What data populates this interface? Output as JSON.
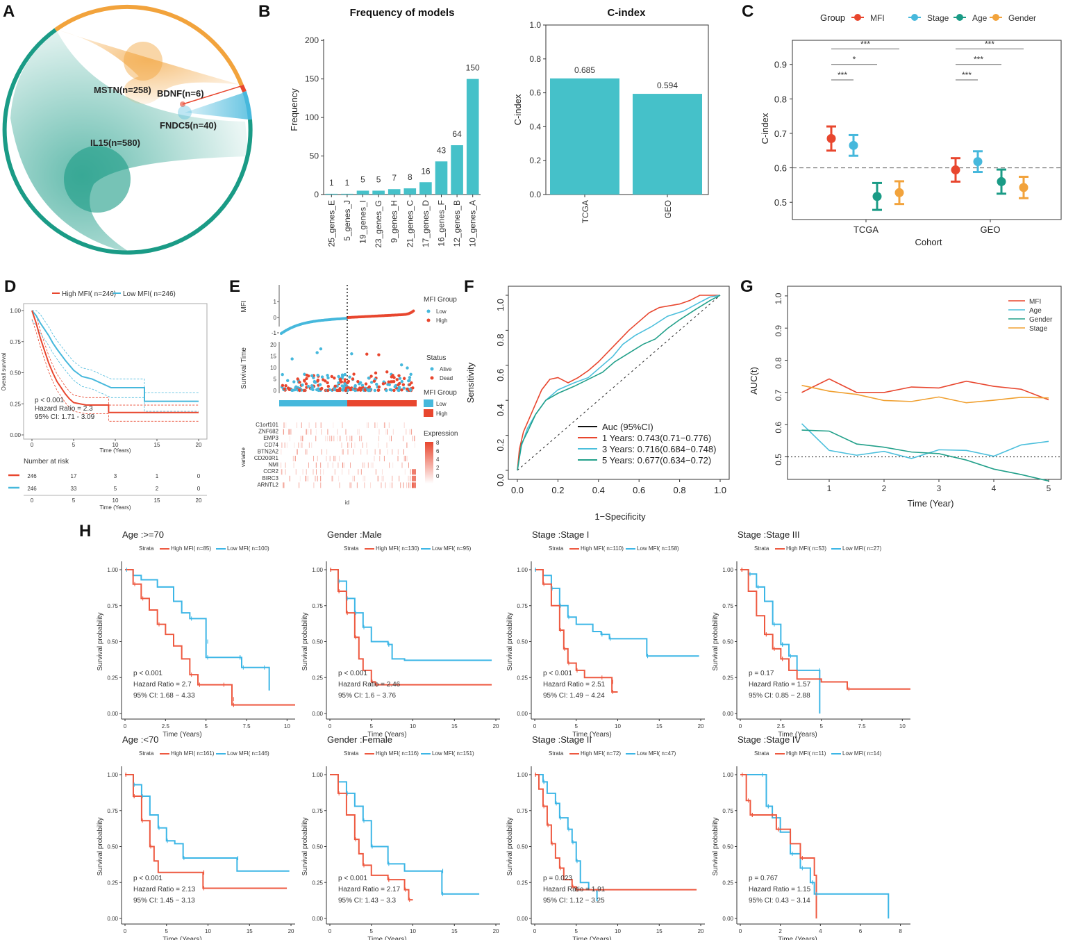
{
  "colors": {
    "teal": "#45c1c9",
    "red": "#e8462e",
    "cyan": "#46b8dc",
    "green": "#1a9b86",
    "orange": "#f2a33c",
    "lred": "#ee5940",
    "lblue": "#3cb6e6",
    "auc_red": "#e8462e",
    "auc_cyan": "#4bbfdc",
    "auc_green": "#22a08a",
    "auc_orange": "#f0a030"
  },
  "panel_letters": [
    "A",
    "B",
    "C",
    "D",
    "E",
    "F",
    "G",
    "H"
  ],
  "chart_data": [
    {
      "id": "A",
      "type": "chord",
      "labels": [
        "MSTN(n=258)",
        "BDNF(n=6)",
        "FNDC5(n=40)",
        "IL15(n=580)"
      ],
      "groups": [
        "MSTN",
        "BDNF",
        "FNDC5",
        "IL15"
      ],
      "counts": [
        258,
        6,
        40,
        580
      ]
    },
    {
      "id": "B1",
      "type": "bar",
      "title": "Frequency of models",
      "ylabel": "Frequency",
      "categories": [
        "25_genes_E",
        "5_genes_J",
        "19_genes_I",
        "23_genes_G",
        "9_genes_H",
        "21_genes_C",
        "17_genes_D",
        "16_genes_F",
        "12_genes_B",
        "10_genes_A"
      ],
      "values": [
        1,
        1,
        5,
        5,
        7,
        8,
        16,
        43,
        64,
        150
      ],
      "labels": [
        "1",
        "1",
        "5",
        "5",
        "7",
        "8",
        "16",
        "43",
        "64",
        "150"
      ],
      "ylim": [
        0,
        220
      ],
      "yticks": [
        0,
        50,
        100,
        150,
        200
      ],
      "ytick_labels": [
        "0",
        "50",
        "100",
        "150",
        "200"
      ]
    },
    {
      "id": "B2",
      "type": "bar",
      "title": "C-index",
      "ylabel": "C-index",
      "categories": [
        "TCGA",
        "GEO"
      ],
      "values": [
        0.685,
        0.594
      ],
      "labels": [
        "0.685",
        "0.594"
      ],
      "ylim": [
        0,
        1
      ],
      "yticks": [
        0,
        0.2,
        0.4,
        0.6,
        0.8,
        1.0
      ],
      "ytick_labels": [
        "0.0",
        "0.2",
        "0.4",
        "0.6",
        "0.8",
        "1.0"
      ]
    },
    {
      "id": "C",
      "type": "errorbar",
      "legend_title": "Group",
      "legend": [
        "MFI",
        "Stage",
        "Age",
        "Gender"
      ],
      "xlabel": "Cohort",
      "ylabel": "C-index",
      "categories": [
        "TCGA",
        "GEO"
      ],
      "ylim": [
        0.45,
        0.97
      ],
      "yticks": [
        0.5,
        0.6,
        0.7,
        0.8,
        0.9
      ],
      "ytick_labels": [
        "0.5",
        "0.6",
        "0.7",
        "0.8",
        "0.9"
      ],
      "refline": 0.6,
      "series": [
        {
          "name": "MFI",
          "mean": [
            0.685,
            0.594
          ],
          "low": [
            0.65,
            0.56
          ],
          "high": [
            0.72,
            0.628
          ]
        },
        {
          "name": "Stage",
          "mean": [
            0.665,
            0.618
          ],
          "low": [
            0.635,
            0.588
          ],
          "high": [
            0.695,
            0.648
          ]
        },
        {
          "name": "Age",
          "mean": [
            0.517,
            0.56
          ],
          "low": [
            0.478,
            0.525
          ],
          "high": [
            0.556,
            0.595
          ]
        },
        {
          "name": "Gender",
          "mean": [
            0.528,
            0.543
          ],
          "low": [
            0.495,
            0.512
          ],
          "high": [
            0.561,
            0.574
          ]
        }
      ],
      "sig": [
        {
          "cohort": 0,
          "to": 3,
          "y": 0.945,
          "label": "***"
        },
        {
          "cohort": 0,
          "to": 2,
          "y": 0.9,
          "label": "*"
        },
        {
          "cohort": 0,
          "to": 1,
          "y": 0.855,
          "label": "***"
        },
        {
          "cohort": 1,
          "to": 3,
          "y": 0.945,
          "label": "***"
        },
        {
          "cohort": 1,
          "to": 2,
          "y": 0.9,
          "label": "***"
        },
        {
          "cohort": 1,
          "to": 1,
          "y": 0.855,
          "label": "***"
        }
      ]
    },
    {
      "id": "D",
      "type": "km",
      "legend": [
        "High MFI( n=246)",
        "Low MFI( n=246)"
      ],
      "ylabel": "Overall survival",
      "xlabel": "Time (Years)",
      "xticks": [
        0,
        5,
        10,
        15,
        20
      ],
      "yticks": [
        "0.00",
        "0.25",
        "0.50",
        "0.75",
        "1.00"
      ],
      "text": [
        "p < 0.001",
        "Hazard Ratio = 2.3",
        "95% CI: 1.71 - 3.09"
      ],
      "risk_title": "Number at risk",
      "risk_high": [
        "246",
        "17",
        "3",
        "1",
        "0"
      ],
      "risk_low": [
        "246",
        "33",
        "5",
        "2",
        "0"
      ],
      "risk_xlabel": "Time (Years)"
    },
    {
      "id": "E",
      "type": "risk_plot",
      "y1": "MFI",
      "y2": "Survival Time",
      "y3": "variable",
      "xlabel": "id",
      "legend1_title": "MFI Group",
      "legend1": [
        "Low",
        "High"
      ],
      "legend2_title": "Status",
      "legend2": [
        "Alive",
        "Dead"
      ],
      "legend3_title": "MFI Group",
      "legend3": [
        "Low",
        "High"
      ],
      "expr_title": "Expression",
      "expr_ticks": [
        "8",
        "6",
        "4",
        "2",
        "0"
      ],
      "genes": [
        "C1orf101",
        "ZNF682",
        "EMP3",
        "CD74",
        "BTN2A2",
        "CD200R1",
        "NMI",
        "CCR2",
        "BIRC3",
        "ARNTL2"
      ],
      "mfi_ticks": [
        "1",
        "0",
        "-1"
      ],
      "time_ticks": [
        "20",
        "15",
        "10",
        "5",
        "0"
      ]
    },
    {
      "id": "F",
      "type": "roc",
      "xlabel": "1−Specificity",
      "ylabel": "Sensitivity",
      "ticks": [
        "0.0",
        "0.2",
        "0.4",
        "0.6",
        "0.8",
        "1.0"
      ],
      "legend": [
        "Auc (95%CI)",
        "1 Years: 0.743(0.71−0.776)",
        "3 Years: 0.716(0.684−0.748)",
        "5 Years: 0.677(0.634−0.72)"
      ]
    },
    {
      "id": "G",
      "type": "line",
      "xlabel": "Time (Year)",
      "ylabel": "AUC(t)",
      "x": [
        0.5,
        1,
        1.5,
        2,
        2.5,
        3,
        3.5,
        4,
        4.5,
        5
      ],
      "xticks": [
        "1",
        "2",
        "3",
        "4",
        "5"
      ],
      "yticks": [
        "0.5",
        "0.6",
        "0.7",
        "0.8",
        "0.9",
        "1.0"
      ],
      "ylim": [
        0.43,
        1.03
      ],
      "refline": 0.5,
      "series": [
        {
          "name": "MFI",
          "values": [
            0.7,
            0.742,
            0.7,
            0.7,
            0.717,
            0.714,
            0.735,
            0.719,
            0.71,
            0.677
          ]
        },
        {
          "name": "Age",
          "values": [
            0.603,
            0.52,
            0.505,
            0.517,
            0.495,
            0.522,
            0.52,
            0.502,
            0.537,
            0.548
          ]
        },
        {
          "name": "Gender",
          "values": [
            0.583,
            0.58,
            0.54,
            0.53,
            0.515,
            0.51,
            0.49,
            0.462,
            0.445,
            0.425
          ]
        },
        {
          "name": "Stage",
          "values": [
            0.722,
            0.704,
            0.694,
            0.675,
            0.672,
            0.686,
            0.668,
            0.676,
            0.685,
            0.683
          ]
        }
      ]
    },
    {
      "id": "H",
      "type": "km_grid",
      "strata_label": "Strata",
      "ylabel": "Survival probability",
      "xlabel": "Time (Years)",
      "yticks": [
        "0.00",
        "0.25",
        "0.50",
        "0.75",
        "1.00"
      ],
      "panels": [
        {
          "title": "Age :>=70",
          "high": "High MFI( n=85)",
          "low": "Low MFI( n=100)",
          "p": "p < 0.001",
          "hr": "Hazard Ratio = 2.7",
          "ci": "95% CI: 1.68 − 4.33",
          "xticks": [
            "0",
            "2.5",
            "5",
            "7.5",
            "10"
          ],
          "xmax": 10.5
        },
        {
          "title": "Gender :Male",
          "high": "High MFI( n=130)",
          "low": "Low MFI( n=95)",
          "p": "p < 0.001",
          "hr": "Hazard Ratio = 2.46",
          "ci": "95% CI: 1.6 − 3.76",
          "xticks": [
            "0",
            "5",
            "10",
            "15",
            "20"
          ],
          "xmax": 20.5
        },
        {
          "title": "Stage :Stage I",
          "high": "High MFI( n=110)",
          "low": "Low MFI( n=158)",
          "p": "p < 0.001",
          "hr": "Hazard Ratio = 2.51",
          "ci": "95% CI: 1.49 − 4.24",
          "xticks": [
            "0",
            "5",
            "10",
            "15",
            "20"
          ],
          "xmax": 20.5
        },
        {
          "title": "Stage :Stage III",
          "high": "High MFI( n=53)",
          "low": "Low MFI( n=27)",
          "p": "p = 0.17",
          "hr": "Hazard Ratio = 1.57",
          "ci": "95% CI: 0.85 − 2.88",
          "xticks": [
            "0",
            "2.5",
            "5",
            "7.5",
            "10"
          ],
          "xmax": 10.5
        },
        {
          "title": "Age :<70",
          "high": "High MFI( n=161)",
          "low": "Low MFI( n=146)",
          "p": "p < 0.001",
          "hr": "Hazard Ratio = 2.13",
          "ci": "95% CI: 1.45 − 3.13",
          "xticks": [
            "0",
            "5",
            "10",
            "15",
            "20"
          ],
          "xmax": 20.5
        },
        {
          "title": "Gender :Female",
          "high": "High MFI( n=116)",
          "low": "Low MFI( n=151)",
          "p": "p < 0.001",
          "hr": "Hazard Ratio = 2.17",
          "ci": "95% CI: 1.43 − 3.3",
          "xticks": [
            "0",
            "5",
            "10",
            "15",
            "20"
          ],
          "xmax": 20.5
        },
        {
          "title": "Stage :Stage II",
          "high": "High MFI( n=72)",
          "low": "Low MFI( n=47)",
          "p": "p = 0.023",
          "hr": "Hazard Ratio = 1.91",
          "ci": "95% CI: 1.12 − 3.25",
          "xticks": [
            "0",
            "5",
            "10",
            "15",
            "20"
          ],
          "xmax": 20.5
        },
        {
          "title": "Stage :Stage IV",
          "high": "High MFI( n=11)",
          "low": "Low MFI( n=14)",
          "p": "p = 0.767",
          "hr": "Hazard Ratio = 1.15",
          "ci": "95% CI: 0.43 − 3.14",
          "xticks": [
            "0",
            "2",
            "4",
            "6",
            "8"
          ],
          "xmax": 8.5
        }
      ]
    }
  ]
}
